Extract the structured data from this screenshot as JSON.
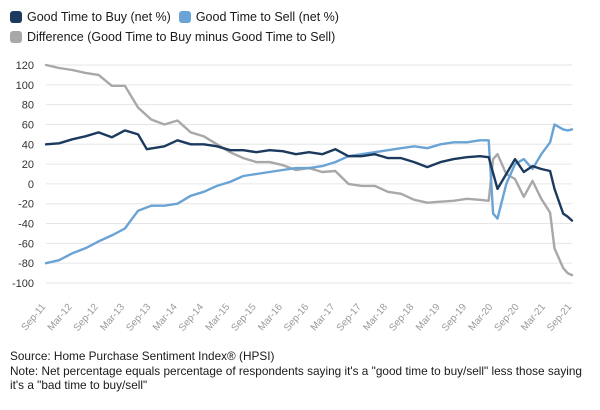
{
  "legend": {
    "buy_label": "Good Time to Buy (net %)",
    "sell_label": "Good Time to Sell (net %)",
    "diff_label": "Difference (Good Time to Buy minus Good Time to Sell)"
  },
  "footer": {
    "source": "Source: Home Purchase Sentiment Index® (HPSI)",
    "note": "Note: Net percentage equals percentage of respondents saying it's a \"good time to buy/sell\" less those saying it's a \"bad time to buy/sell\""
  },
  "colors": {
    "buy": "#1b3a5e",
    "sell": "#6aa3d5",
    "diff": "#a8a8a8",
    "grid": "#e6e6e6"
  },
  "chart_data": {
    "type": "line",
    "title": "",
    "xlabel": "",
    "ylabel": "",
    "ylim": [
      -100,
      120
    ],
    "y_ticks": [
      -100,
      -80,
      -60,
      -40,
      -20,
      0,
      20,
      40,
      60,
      80,
      100,
      120
    ],
    "x_tick_labels": [
      "Sep-11",
      "Mar-12",
      "Sep-12",
      "Mar-13",
      "Sep-13",
      "Mar-14",
      "Sep-14",
      "Mar-15",
      "Sep-15",
      "Mar-16",
      "Sep-16",
      "Mar-17",
      "Sep-17",
      "Mar-18",
      "Sep-18",
      "Mar-19",
      "Sep-19",
      "Mar-20",
      "Sep-20",
      "Mar-21",
      "Sep-21"
    ],
    "x_range": [
      "Sep-11",
      "Sep-21"
    ],
    "grid": "horizontal",
    "legend_position": "top-left",
    "series": [
      {
        "name": "Good Time to Buy (net %)",
        "points": [
          [
            "Sep-11",
            40
          ],
          [
            "Dec-11",
            41
          ],
          [
            "Mar-12",
            45
          ],
          [
            "Jun-12",
            48
          ],
          [
            "Sep-12",
            52
          ],
          [
            "Dec-12",
            47
          ],
          [
            "Mar-13",
            54
          ],
          [
            "Jun-13",
            50
          ],
          [
            "Aug-13",
            35
          ],
          [
            "Dec-13",
            38
          ],
          [
            "Mar-14",
            44
          ],
          [
            "Jun-14",
            40
          ],
          [
            "Sep-14",
            40
          ],
          [
            "Dec-14",
            38
          ],
          [
            "Mar-15",
            34
          ],
          [
            "Jun-15",
            34
          ],
          [
            "Sep-15",
            32
          ],
          [
            "Dec-15",
            34
          ],
          [
            "Mar-16",
            33
          ],
          [
            "Jun-16",
            30
          ],
          [
            "Sep-16",
            32
          ],
          [
            "Dec-16",
            30
          ],
          [
            "Mar-17",
            35
          ],
          [
            "Jun-17",
            28
          ],
          [
            "Sep-17",
            28
          ],
          [
            "Dec-17",
            30
          ],
          [
            "Mar-18",
            26
          ],
          [
            "Jun-18",
            26
          ],
          [
            "Sep-18",
            22
          ],
          [
            "Dec-18",
            17
          ],
          [
            "Mar-19",
            22
          ],
          [
            "Jun-19",
            25
          ],
          [
            "Sep-19",
            27
          ],
          [
            "Dec-19",
            28
          ],
          [
            "Feb-20",
            27
          ],
          [
            "Apr-20",
            -5
          ],
          [
            "Jun-20",
            10
          ],
          [
            "Aug-20",
            25
          ],
          [
            "Oct-20",
            12
          ],
          [
            "Dec-20",
            18
          ],
          [
            "Feb-21",
            15
          ],
          [
            "Apr-21",
            13
          ],
          [
            "May-21",
            -5
          ],
          [
            "Jul-21",
            -30
          ],
          [
            "Aug-21",
            -33
          ],
          [
            "Sep-21",
            -37
          ]
        ]
      },
      {
        "name": "Good Time to Sell (net %)",
        "points": [
          [
            "Sep-11",
            -80
          ],
          [
            "Dec-11",
            -77
          ],
          [
            "Mar-12",
            -70
          ],
          [
            "Jun-12",
            -65
          ],
          [
            "Sep-12",
            -58
          ],
          [
            "Dec-12",
            -52
          ],
          [
            "Mar-13",
            -45
          ],
          [
            "Jun-13",
            -27
          ],
          [
            "Sep-13",
            -22
          ],
          [
            "Dec-13",
            -22
          ],
          [
            "Mar-14",
            -20
          ],
          [
            "Jun-14",
            -12
          ],
          [
            "Sep-14",
            -8
          ],
          [
            "Dec-14",
            -2
          ],
          [
            "Mar-15",
            2
          ],
          [
            "Jun-15",
            8
          ],
          [
            "Sep-15",
            10
          ],
          [
            "Dec-15",
            12
          ],
          [
            "Mar-16",
            14
          ],
          [
            "Jun-16",
            16
          ],
          [
            "Sep-16",
            16
          ],
          [
            "Dec-16",
            18
          ],
          [
            "Mar-17",
            22
          ],
          [
            "Jun-17",
            28
          ],
          [
            "Sep-17",
            30
          ],
          [
            "Dec-17",
            32
          ],
          [
            "Mar-18",
            34
          ],
          [
            "Jun-18",
            36
          ],
          [
            "Sep-18",
            38
          ],
          [
            "Dec-18",
            36
          ],
          [
            "Mar-19",
            40
          ],
          [
            "Jun-19",
            42
          ],
          [
            "Sep-19",
            42
          ],
          [
            "Dec-19",
            44
          ],
          [
            "Feb-20",
            44
          ],
          [
            "Mar-20",
            -30
          ],
          [
            "Apr-20",
            -35
          ],
          [
            "Jun-20",
            0
          ],
          [
            "Aug-20",
            20
          ],
          [
            "Oct-20",
            25
          ],
          [
            "Dec-20",
            15
          ],
          [
            "Feb-21",
            30
          ],
          [
            "Apr-21",
            42
          ],
          [
            "May-21",
            60
          ],
          [
            "Jul-21",
            55
          ],
          [
            "Aug-21",
            54
          ],
          [
            "Sep-21",
            55
          ]
        ]
      },
      {
        "name": "Difference (Good Time to Buy minus Good Time to Sell)",
        "points": [
          [
            "Sep-11",
            120
          ],
          [
            "Dec-11",
            117
          ],
          [
            "Mar-12",
            115
          ],
          [
            "Jun-12",
            112
          ],
          [
            "Sep-12",
            110
          ],
          [
            "Dec-12",
            99
          ],
          [
            "Mar-13",
            99
          ],
          [
            "Jun-13",
            77
          ],
          [
            "Sep-13",
            65
          ],
          [
            "Dec-13",
            60
          ],
          [
            "Mar-14",
            64
          ],
          [
            "Jun-14",
            52
          ],
          [
            "Sep-14",
            48
          ],
          [
            "Dec-14",
            40
          ],
          [
            "Mar-15",
            32
          ],
          [
            "Jun-15",
            26
          ],
          [
            "Sep-15",
            22
          ],
          [
            "Dec-15",
            22
          ],
          [
            "Mar-16",
            19
          ],
          [
            "Jun-16",
            14
          ],
          [
            "Sep-16",
            16
          ],
          [
            "Dec-16",
            12
          ],
          [
            "Mar-17",
            13
          ],
          [
            "Jun-17",
            0
          ],
          [
            "Sep-17",
            -2
          ],
          [
            "Dec-17",
            -2
          ],
          [
            "Mar-18",
            -8
          ],
          [
            "Jun-18",
            -10
          ],
          [
            "Sep-18",
            -16
          ],
          [
            "Dec-18",
            -19
          ],
          [
            "Mar-19",
            -18
          ],
          [
            "Jun-19",
            -17
          ],
          [
            "Sep-19",
            -15
          ],
          [
            "Dec-19",
            -16
          ],
          [
            "Feb-20",
            -17
          ],
          [
            "Mar-20",
            25
          ],
          [
            "Apr-20",
            30
          ],
          [
            "Jun-20",
            10
          ],
          [
            "Aug-20",
            5
          ],
          [
            "Oct-20",
            -13
          ],
          [
            "Dec-20",
            3
          ],
          [
            "Feb-21",
            -15
          ],
          [
            "Apr-21",
            -29
          ],
          [
            "May-21",
            -65
          ],
          [
            "Jul-21",
            -85
          ],
          [
            "Aug-21",
            -90
          ],
          [
            "Sep-21",
            -92
          ]
        ]
      }
    ]
  }
}
